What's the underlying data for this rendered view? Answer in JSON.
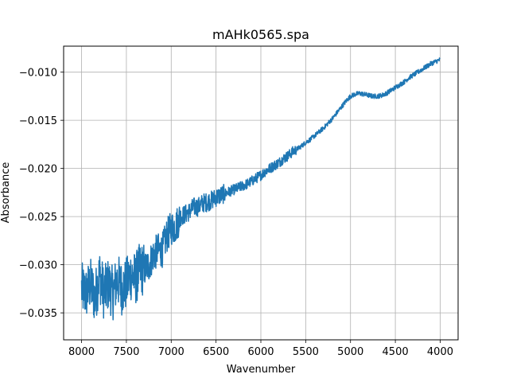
{
  "chart_data": {
    "type": "line",
    "title": "mAHk0565.spa",
    "xlabel": "Wavenumber",
    "ylabel": "Absorbance",
    "xlim": [
      8200,
      3800
    ],
    "ylim": [
      -0.0378,
      -0.0073
    ],
    "x_inverted": true,
    "grid": true,
    "xticks": [
      8000,
      7500,
      7000,
      6500,
      6000,
      5500,
      5000,
      4500,
      4000
    ],
    "xtick_labels": [
      "8000",
      "7500",
      "7000",
      "6500",
      "6000",
      "5500",
      "5000",
      "4500",
      "4000"
    ],
    "yticks": [
      -0.035,
      -0.03,
      -0.025,
      -0.02,
      -0.015,
      -0.01
    ],
    "ytick_labels": [
      "−0.035",
      "−0.030",
      "−0.025",
      "−0.020",
      "−0.015",
      "−0.010"
    ],
    "series": [
      {
        "color": "#1f77b4",
        "x": [
          8000,
          7950,
          7900,
          7850,
          7800,
          7750,
          7700,
          7650,
          7600,
          7550,
          7500,
          7450,
          7400,
          7350,
          7300,
          7250,
          7200,
          7150,
          7100,
          7050,
          7000,
          6950,
          6900,
          6850,
          6800,
          6750,
          6700,
          6650,
          6600,
          6550,
          6500,
          6450,
          6400,
          6350,
          6300,
          6250,
          6200,
          6150,
          6100,
          6050,
          6000,
          5950,
          5900,
          5850,
          5800,
          5750,
          5700,
          5650,
          5600,
          5550,
          5500,
          5450,
          5400,
          5350,
          5300,
          5250,
          5200,
          5150,
          5100,
          5050,
          5000,
          4950,
          4900,
          4850,
          4800,
          4750,
          4700,
          4650,
          4600,
          4550,
          4500,
          4450,
          4400,
          4350,
          4300,
          4250,
          4200,
          4150,
          4100,
          4050,
          4000
        ],
        "y": [
          -0.0325,
          -0.033,
          -0.032,
          -0.0335,
          -0.031,
          -0.033,
          -0.032,
          -0.033,
          -0.0315,
          -0.0325,
          -0.032,
          -0.031,
          -0.0315,
          -0.0305,
          -0.0305,
          -0.03,
          -0.029,
          -0.0285,
          -0.0285,
          -0.027,
          -0.0262,
          -0.026,
          -0.025,
          -0.0248,
          -0.0245,
          -0.024,
          -0.024,
          -0.0236,
          -0.0235,
          -0.0233,
          -0.023,
          -0.0228,
          -0.0226,
          -0.0224,
          -0.0222,
          -0.022,
          -0.0218,
          -0.0216,
          -0.0213,
          -0.021,
          -0.0207,
          -0.0203,
          -0.02,
          -0.0197,
          -0.0194,
          -0.019,
          -0.0187,
          -0.0183,
          -0.018,
          -0.0177,
          -0.0173,
          -0.017,
          -0.0166,
          -0.0162,
          -0.0158,
          -0.0153,
          -0.0148,
          -0.0142,
          -0.0136,
          -0.013,
          -0.0125,
          -0.0123,
          -0.0122,
          -0.0123,
          -0.0124,
          -0.0125,
          -0.0125,
          -0.0124,
          -0.0122,
          -0.0119,
          -0.0116,
          -0.0113,
          -0.011,
          -0.0106,
          -0.0103,
          -0.01,
          -0.0097,
          -0.0094,
          -0.0091,
          -0.0089,
          -0.0087
        ]
      }
    ]
  }
}
